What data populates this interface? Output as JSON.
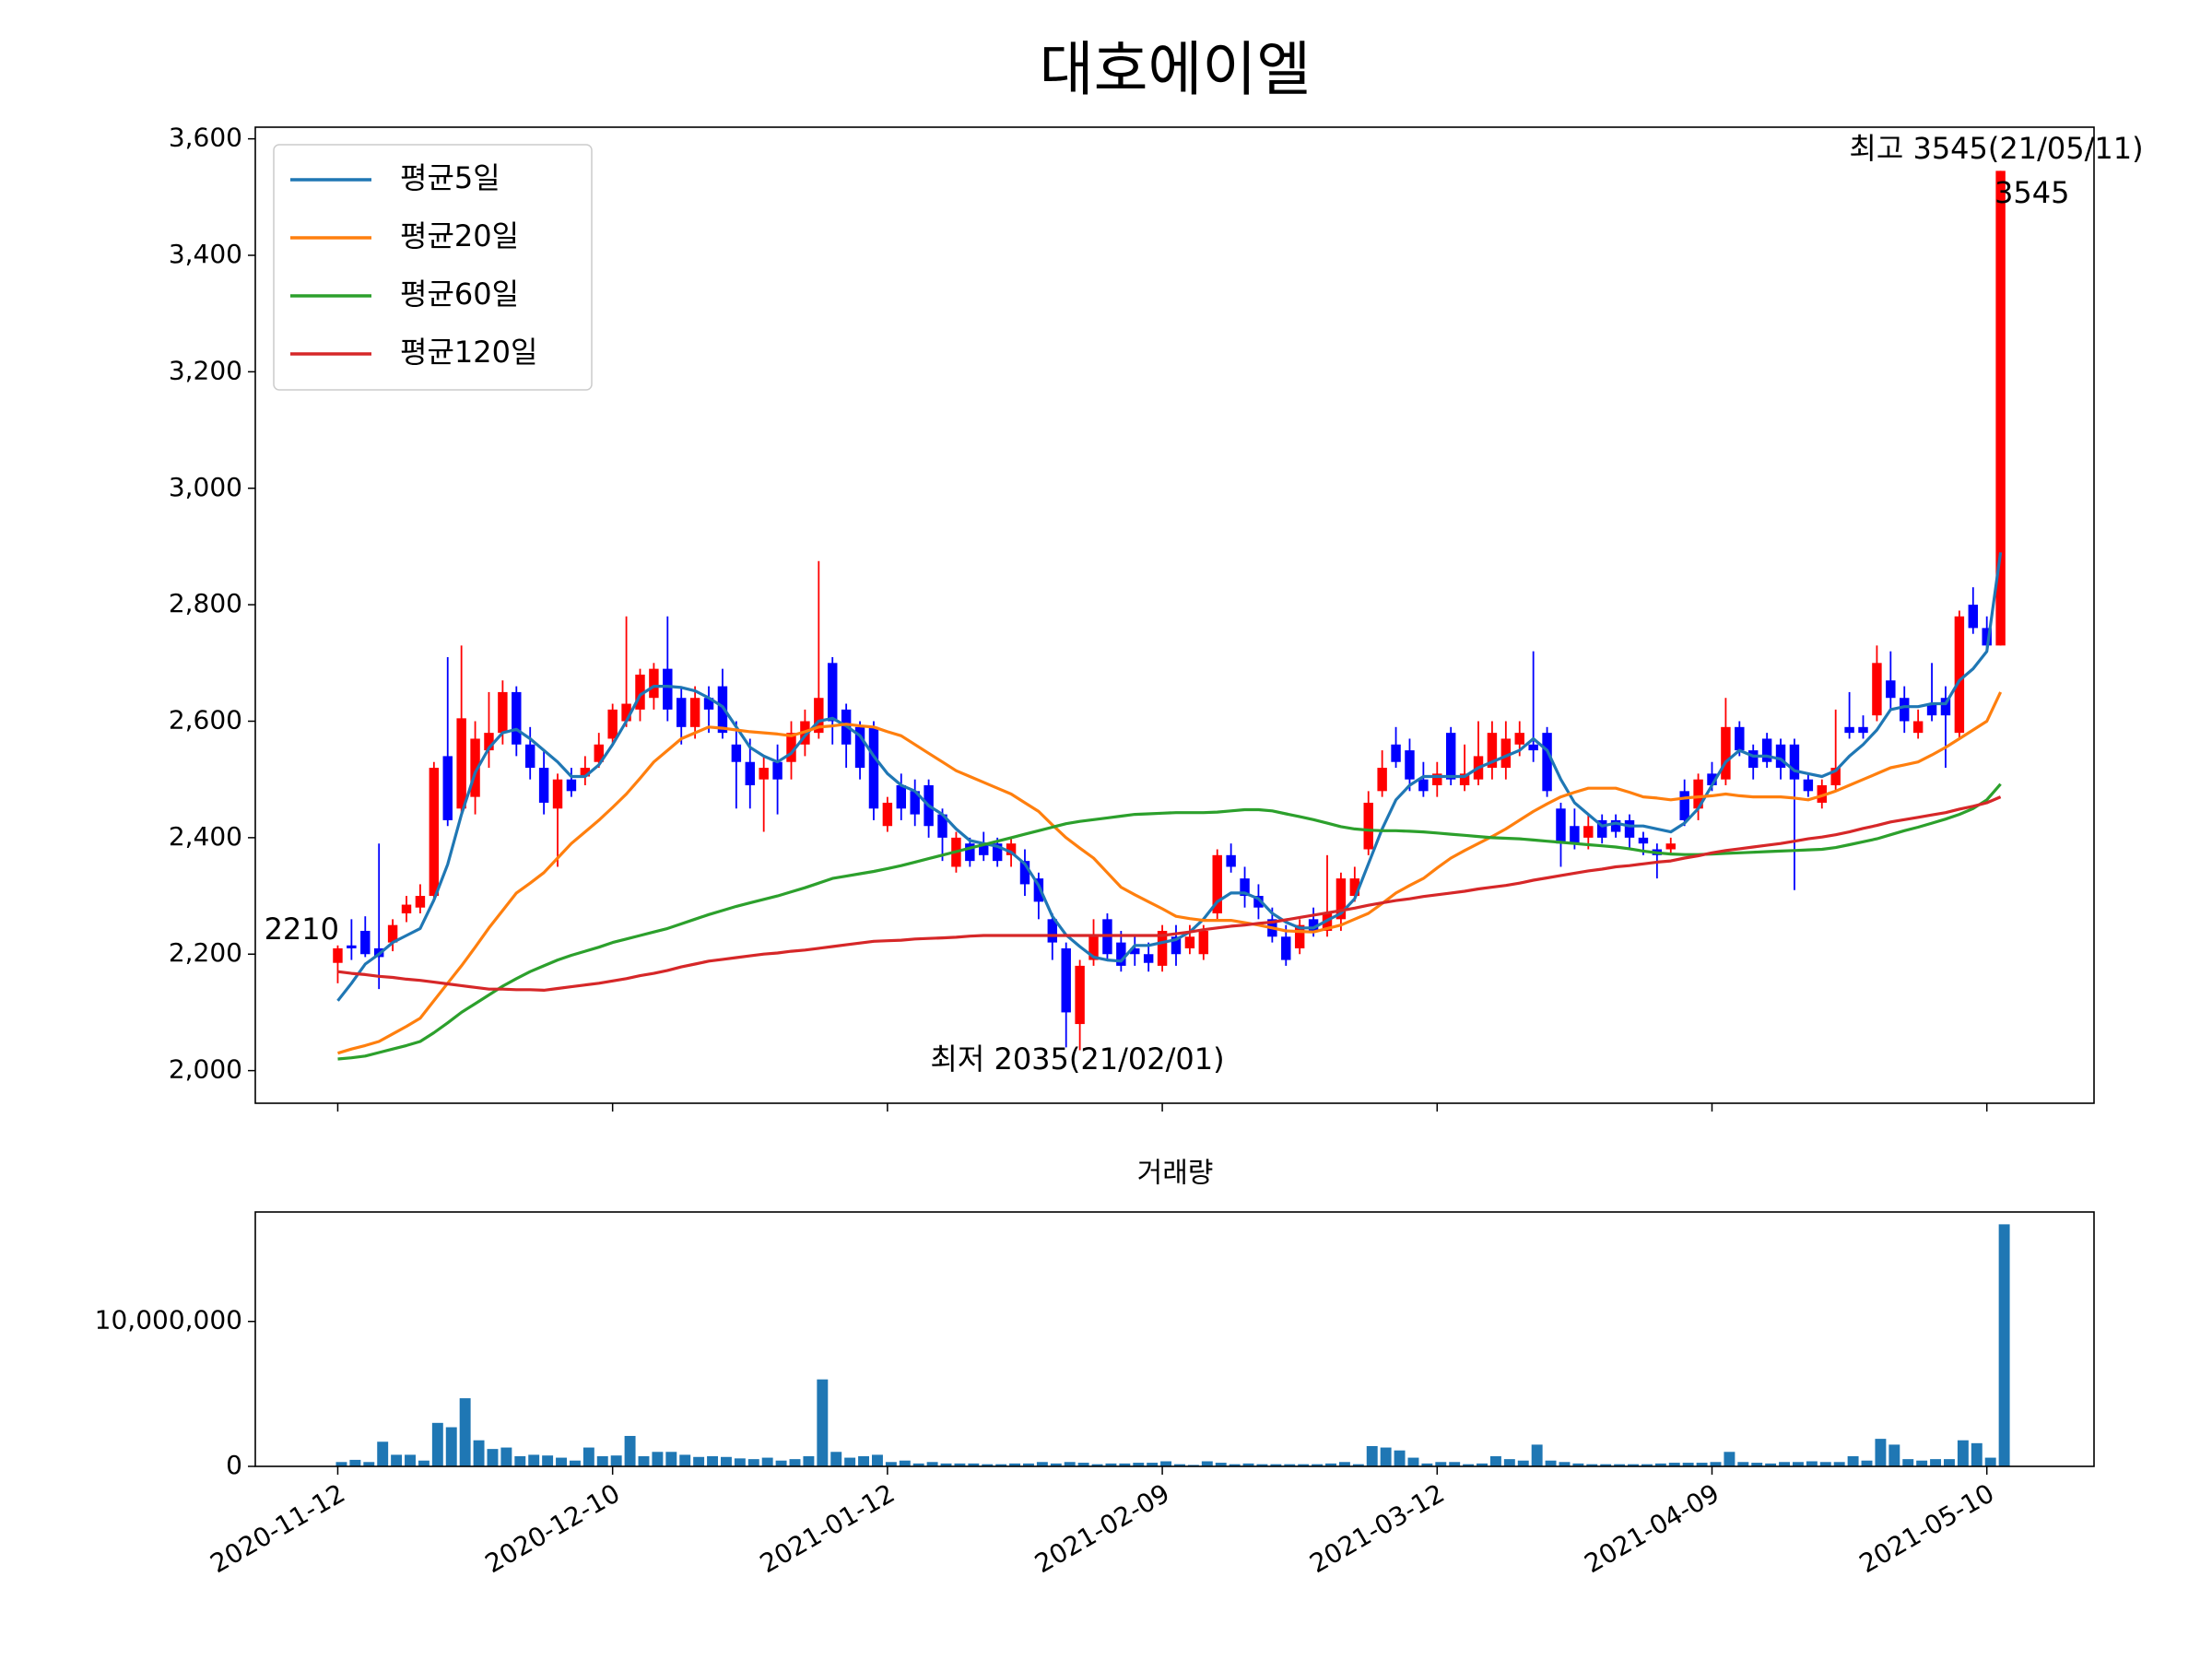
{
  "chart_data": {
    "type": "candlestick",
    "title": "대호에이엘",
    "categories": [
      "2020-11-12",
      null,
      null,
      null,
      null,
      null,
      null,
      null,
      null,
      null,
      null,
      null,
      null,
      null,
      null,
      null,
      null,
      null,
      null,
      null,
      "2020-12-10",
      null,
      null,
      null,
      null,
      null,
      null,
      null,
      null,
      null,
      null,
      null,
      null,
      null,
      null,
      null,
      null,
      null,
      null,
      null,
      "2021-01-12",
      null,
      null,
      null,
      null,
      null,
      null,
      null,
      null,
      null,
      null,
      null,
      null,
      null,
      null,
      null,
      null,
      null,
      null,
      null,
      "2021-02-09",
      null,
      null,
      null,
      null,
      null,
      null,
      null,
      null,
      null,
      null,
      null,
      null,
      null,
      null,
      null,
      null,
      null,
      null,
      null,
      "2021-03-12",
      null,
      null,
      null,
      null,
      null,
      null,
      null,
      null,
      null,
      null,
      null,
      null,
      null,
      null,
      null,
      null,
      null,
      null,
      null,
      "2021-04-09",
      null,
      null,
      null,
      null,
      null,
      null,
      null,
      null,
      null,
      null,
      null,
      null,
      null,
      null,
      null,
      null,
      null,
      null,
      null,
      "2021-05-10",
      null
    ],
    "open": [
      2185,
      2215,
      2240,
      2210,
      2220,
      2270,
      2280,
      2300,
      2540,
      2450,
      2470,
      2550,
      2580,
      2650,
      2560,
      2520,
      2450,
      2500,
      2505,
      2530,
      2570,
      2600,
      2620,
      2640,
      2690,
      2640,
      2590,
      2640,
      2660,
      2560,
      2530,
      2500,
      2530,
      2530,
      2560,
      2580,
      2700,
      2620,
      2590,
      2590,
      2420,
      2490,
      2480,
      2490,
      2440,
      2350,
      2390,
      2390,
      2390,
      2370,
      2360,
      2330,
      2260,
      2210,
      2080,
      2190,
      2260,
      2220,
      2210,
      2200,
      2180,
      2230,
      2210,
      2200,
      2270,
      2370,
      2330,
      2300,
      2260,
      2230,
      2210,
      2260,
      2240,
      2260,
      2300,
      2380,
      2480,
      2560,
      2550,
      2500,
      2490,
      2580,
      2490,
      2500,
      2520,
      2520,
      2560,
      2560,
      2580,
      2450,
      2420,
      2400,
      2430,
      2430,
      2430,
      2400,
      2380,
      2380,
      2480,
      2450,
      2510,
      2500,
      2590,
      2550,
      2570,
      2560,
      2560,
      2500,
      2460,
      2490,
      2590,
      2590,
      2610,
      2670,
      2640,
      2580,
      2630,
      2640,
      2580,
      2800,
      2760,
      2730
    ],
    "high": [
      2215,
      2260,
      2265,
      2390,
      2260,
      2300,
      2320,
      2530,
      2710,
      2730,
      2600,
      2650,
      2670,
      2660,
      2590,
      2550,
      2510,
      2520,
      2540,
      2580,
      2630,
      2780,
      2690,
      2700,
      2780,
      2660,
      2660,
      2660,
      2690,
      2600,
      2570,
      2540,
      2560,
      2600,
      2620,
      2875,
      2710,
      2630,
      2600,
      2600,
      2470,
      2510,
      2500,
      2500,
      2450,
      2410,
      2400,
      2410,
      2400,
      2400,
      2380,
      2340,
      2270,
      2220,
      2190,
      2260,
      2270,
      2240,
      2230,
      2220,
      2250,
      2250,
      2250,
      2250,
      2380,
      2390,
      2350,
      2320,
      2280,
      2250,
      2260,
      2280,
      2370,
      2340,
      2350,
      2480,
      2550,
      2590,
      2570,
      2530,
      2530,
      2590,
      2560,
      2600,
      2600,
      2600,
      2600,
      2720,
      2590,
      2460,
      2450,
      2440,
      2440,
      2440,
      2440,
      2410,
      2390,
      2400,
      2500,
      2510,
      2530,
      2640,
      2600,
      2560,
      2580,
      2570,
      2570,
      2510,
      2500,
      2620,
      2650,
      2610,
      2730,
      2720,
      2660,
      2620,
      2700,
      2660,
      2790,
      2830,
      2780,
      3545
    ],
    "low": [
      2150,
      2190,
      2195,
      2140,
      2205,
      2255,
      2270,
      2290,
      2420,
      2440,
      2440,
      2520,
      2560,
      2540,
      2500,
      2440,
      2350,
      2470,
      2490,
      2520,
      2560,
      2590,
      2600,
      2620,
      2600,
      2560,
      2570,
      2580,
      2570,
      2450,
      2450,
      2410,
      2440,
      2500,
      2540,
      2570,
      2560,
      2520,
      2500,
      2430,
      2410,
      2430,
      2420,
      2400,
      2360,
      2340,
      2350,
      2360,
      2350,
      2350,
      2300,
      2260,
      2190,
      2040,
      2035,
      2180,
      2190,
      2170,
      2180,
      2170,
      2170,
      2180,
      2200,
      2190,
      2260,
      2340,
      2280,
      2260,
      2220,
      2180,
      2200,
      2230,
      2230,
      2240,
      2290,
      2370,
      2470,
      2520,
      2480,
      2470,
      2470,
      2490,
      2480,
      2490,
      2500,
      2500,
      2540,
      2530,
      2470,
      2350,
      2380,
      2380,
      2390,
      2400,
      2380,
      2370,
      2330,
      2370,
      2420,
      2430,
      2480,
      2490,
      2540,
      2500,
      2520,
      2500,
      2310,
      2470,
      2450,
      2480,
      2570,
      2570,
      2600,
      2620,
      2580,
      2570,
      2600,
      2520,
      2570,
      2750,
      2720,
      2730
    ],
    "close": [
      2210,
      2210,
      2200,
      2195,
      2250,
      2285,
      2300,
      2520,
      2430,
      2605,
      2570,
      2580,
      2650,
      2560,
      2520,
      2460,
      2500,
      2480,
      2520,
      2560,
      2620,
      2630,
      2680,
      2690,
      2620,
      2590,
      2640,
      2620,
      2580,
      2530,
      2490,
      2520,
      2500,
      2580,
      2600,
      2640,
      2600,
      2560,
      2520,
      2450,
      2460,
      2450,
      2440,
      2420,
      2400,
      2400,
      2360,
      2370,
      2360,
      2390,
      2320,
      2290,
      2220,
      2100,
      2180,
      2230,
      2200,
      2180,
      2200,
      2185,
      2240,
      2200,
      2230,
      2240,
      2370,
      2350,
      2300,
      2280,
      2230,
      2190,
      2250,
      2240,
      2270,
      2330,
      2330,
      2460,
      2520,
      2530,
      2500,
      2480,
      2510,
      2500,
      2510,
      2540,
      2580,
      2570,
      2580,
      2550,
      2480,
      2390,
      2390,
      2420,
      2400,
      2410,
      2400,
      2390,
      2370,
      2390,
      2430,
      2500,
      2490,
      2590,
      2550,
      2520,
      2530,
      2520,
      2500,
      2480,
      2490,
      2520,
      2580,
      2580,
      2700,
      2640,
      2600,
      2600,
      2610,
      2610,
      2780,
      2760,
      2730,
      3545
    ],
    "up_color": "#ff0000",
    "down_color": "#0000ff",
    "series": [
      {
        "name": "평균5일",
        "color": "#1f77b4",
        "values": [
          2120,
          2150,
          2183,
          2200,
          2220,
          2232,
          2244,
          2293,
          2354,
          2440,
          2512,
          2554,
          2580,
          2586,
          2570,
          2550,
          2530,
          2505,
          2505,
          2525,
          2560,
          2600,
          2645,
          2660,
          2660,
          2658,
          2652,
          2640,
          2625,
          2590,
          2555,
          2540,
          2530,
          2545,
          2575,
          2600,
          2605,
          2592,
          2575,
          2540,
          2510,
          2490,
          2480,
          2455,
          2440,
          2415,
          2395,
          2390,
          2385,
          2375,
          2355,
          2318,
          2265,
          2233,
          2213,
          2195,
          2190,
          2188,
          2215,
          2215,
          2220,
          2225,
          2238,
          2260,
          2290,
          2305,
          2305,
          2295,
          2270,
          2255,
          2245,
          2245,
          2258,
          2270,
          2295,
          2355,
          2415,
          2465,
          2490,
          2505,
          2505,
          2505,
          2505,
          2520,
          2530,
          2540,
          2550,
          2570,
          2550,
          2500,
          2460,
          2440,
          2420,
          2425,
          2420,
          2420,
          2415,
          2410,
          2425,
          2450,
          2490,
          2530,
          2550,
          2540,
          2540,
          2535,
          2515,
          2510,
          2505,
          2515,
          2540,
          2560,
          2585,
          2620,
          2625,
          2625,
          2630,
          2630,
          2670,
          2690,
          2720,
          2890
        ]
      },
      {
        "name": "평균20일",
        "color": "#ff7f0e",
        "values": [
          2030,
          2037,
          2043,
          2050,
          2063,
          2076,
          2090,
          2120,
          2150,
          2180,
          2212,
          2245,
          2275,
          2305,
          2322,
          2340,
          2365,
          2390,
          2410,
          2430,
          2452,
          2475,
          2502,
          2530,
          2550,
          2570,
          2580,
          2590,
          2588,
          2585,
          2582,
          2580,
          2578,
          2575,
          2582,
          2590,
          2592,
          2595,
          2592,
          2590,
          2582,
          2575,
          2560,
          2545,
          2530,
          2515,
          2505,
          2495,
          2485,
          2475,
          2460,
          2445,
          2422,
          2400,
          2382,
          2365,
          2340,
          2315,
          2302,
          2290,
          2278,
          2265,
          2261,
          2258,
          2258,
          2258,
          2254,
          2250,
          2245,
          2240,
          2239,
          2238,
          2244,
          2250,
          2260,
          2270,
          2287,
          2305,
          2318,
          2330,
          2348,
          2365,
          2378,
          2390,
          2402,
          2415,
          2430,
          2445,
          2458,
          2470,
          2478,
          2485,
          2485,
          2485,
          2478,
          2470,
          2468,
          2465,
          2468,
          2470,
          2472,
          2475,
          2472,
          2470,
          2470,
          2470,
          2468,
          2465,
          2472,
          2480,
          2490,
          2500,
          2510,
          2520,
          2525,
          2530,
          2542,
          2555,
          2570,
          2585,
          2600,
          2650
        ]
      },
      {
        "name": "평균60일",
        "color": "#2ca02c",
        "values": [
          2020,
          2022,
          2025,
          2031,
          2037,
          2043,
          2050,
          2065,
          2082,
          2100,
          2115,
          2130,
          2145,
          2158,
          2170,
          2180,
          2190,
          2198,
          2205,
          2212,
          2220,
          2226,
          2232,
          2238,
          2244,
          2252,
          2260,
          2268,
          2275,
          2282,
          2288,
          2294,
          2300,
          2307,
          2314,
          2322,
          2330,
          2334,
          2338,
          2342,
          2347,
          2352,
          2358,
          2364,
          2370,
          2376,
          2382,
          2388,
          2394,
          2400,
          2406,
          2412,
          2418,
          2424,
          2428,
          2431,
          2434,
          2437,
          2440,
          2441,
          2442,
          2443,
          2443,
          2443,
          2444,
          2446,
          2448,
          2448,
          2446,
          2441,
          2436,
          2431,
          2425,
          2419,
          2415,
          2413,
          2412,
          2412,
          2411,
          2410,
          2408,
          2406,
          2404,
          2402,
          2400,
          2399,
          2398,
          2396,
          2394,
          2392,
          2390,
          2388,
          2386,
          2384,
          2381,
          2377,
          2374,
          2372,
          2371,
          2371,
          2372,
          2373,
          2374,
          2375,
          2376,
          2377,
          2378,
          2379,
          2380,
          2383,
          2388,
          2393,
          2398,
          2405,
          2412,
          2418,
          2425,
          2432,
          2440,
          2450,
          2465,
          2492
        ]
      },
      {
        "name": "평균120일",
        "color": "#d62728",
        "values": [
          2170,
          2167,
          2165,
          2162,
          2160,
          2157,
          2155,
          2152,
          2149,
          2146,
          2143,
          2140,
          2140,
          2139,
          2139,
          2138,
          2141,
          2144,
          2147,
          2150,
          2154,
          2158,
          2163,
          2167,
          2172,
          2178,
          2183,
          2188,
          2191,
          2194,
          2197,
          2200,
          2202,
          2205,
          2207,
          2210,
          2213,
          2216,
          2219,
          2222,
          2223,
          2224,
          2226,
          2227,
          2228,
          2229,
          2231,
          2232,
          2232,
          2232,
          2232,
          2232,
          2232,
          2232,
          2232,
          2232,
          2232,
          2232,
          2232,
          2232,
          2232,
          2235,
          2238,
          2242,
          2245,
          2248,
          2250,
          2253,
          2255,
          2259,
          2263,
          2267,
          2271,
          2275,
          2279,
          2284,
          2288,
          2292,
          2295,
          2299,
          2302,
          2305,
          2308,
          2312,
          2315,
          2318,
          2322,
          2327,
          2331,
          2335,
          2339,
          2343,
          2346,
          2350,
          2352,
          2355,
          2358,
          2360,
          2365,
          2369,
          2374,
          2378,
          2381,
          2384,
          2387,
          2390,
          2394,
          2398,
          2401,
          2405,
          2410,
          2416,
          2421,
          2427,
          2431,
          2435,
          2439,
          2443,
          2449,
          2454,
          2460,
          2470
        ]
      }
    ],
    "xlim": [
      -6,
      127.8
    ],
    "ylim": [
      1944,
      3620
    ],
    "yticks": [
      {
        "value": 2000,
        "label": "2,000"
      },
      {
        "value": 2200,
        "label": "2,200"
      },
      {
        "value": 2400,
        "label": "2,400"
      },
      {
        "value": 2600,
        "label": "2,600"
      },
      {
        "value": 2800,
        "label": "2,800"
      },
      {
        "value": 3000,
        "label": "3,000"
      },
      {
        "value": 3200,
        "label": "3,200"
      },
      {
        "value": 3400,
        "label": "3,400"
      },
      {
        "value": 3600,
        "label": "3,600"
      }
    ],
    "legend": "upper left",
    "annotations": [
      {
        "text": "2210",
        "color": "#000000"
      },
      {
        "text": "3545",
        "color": "#000000"
      },
      {
        "text": "최고 3545(21/05/11)",
        "color": "#ff0000"
      },
      {
        "text": "최저 2035(21/02/01)",
        "color": "#0000ff"
      }
    ],
    "volume": {
      "title": "거래량",
      "color": "#1f77b4",
      "values": [
        300000,
        450000,
        300000,
        1700000,
        800000,
        800000,
        400000,
        3000000,
        2700000,
        4700000,
        1800000,
        1200000,
        1300000,
        700000,
        800000,
        750000,
        600000,
        400000,
        1300000,
        700000,
        750000,
        2100000,
        700000,
        1000000,
        1000000,
        800000,
        650000,
        700000,
        650000,
        550000,
        500000,
        600000,
        400000,
        500000,
        700000,
        6000000,
        1000000,
        600000,
        700000,
        800000,
        300000,
        400000,
        200000,
        300000,
        200000,
        200000,
        200000,
        150000,
        150000,
        200000,
        200000,
        300000,
        200000,
        300000,
        250000,
        150000,
        200000,
        200000,
        250000,
        250000,
        350000,
        150000,
        100000,
        350000,
        250000,
        150000,
        200000,
        150000,
        150000,
        150000,
        150000,
        150000,
        200000,
        300000,
        150000,
        1400000,
        1300000,
        1100000,
        600000,
        200000,
        300000,
        300000,
        150000,
        200000,
        700000,
        500000,
        400000,
        1500000,
        400000,
        300000,
        200000,
        150000,
        150000,
        150000,
        150000,
        150000,
        200000,
        250000,
        250000,
        250000,
        300000,
        1000000,
        300000,
        250000,
        200000,
        300000,
        300000,
        350000,
        300000,
        300000,
        700000,
        400000,
        1900000,
        1500000,
        500000,
        400000,
        500000,
        500000,
        1800000,
        1600000,
        600000,
        16700000
      ],
      "ylim": [
        0,
        17550000
      ],
      "yticks": [
        0,
        {
          "value": 10000000,
          "label": "10,000,000"
        }
      ]
    }
  }
}
